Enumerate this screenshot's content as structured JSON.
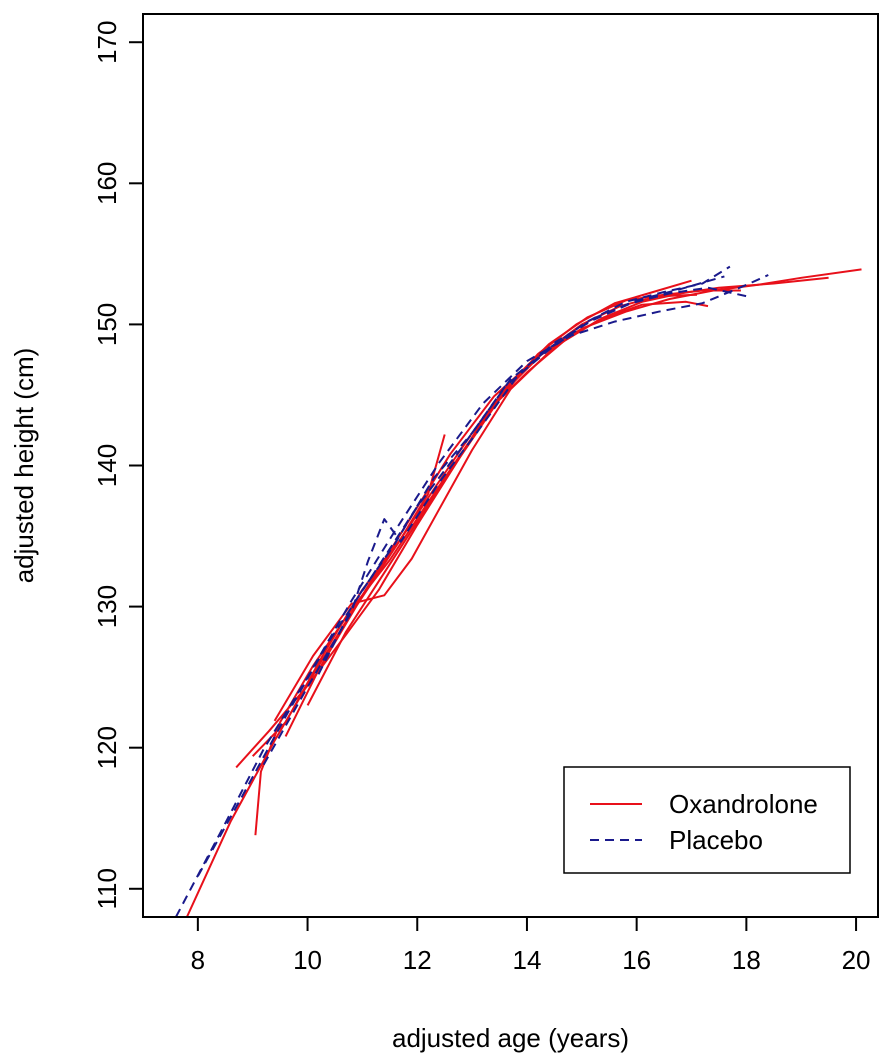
{
  "chart_data": {
    "type": "line",
    "title": "",
    "xlabel": "adjusted age (years)",
    "ylabel": "adjusted height (cm)",
    "xlim": [
      7.0,
      20.4
    ],
    "ylim": [
      108.0,
      172.0
    ],
    "x_ticks": [
      8,
      10,
      12,
      14,
      16,
      18,
      20
    ],
    "y_ticks": [
      110,
      120,
      130,
      140,
      150,
      160,
      170
    ],
    "grid": false,
    "legend": {
      "position": "bottom-right",
      "entries": [
        {
          "label": "Oxandrolone",
          "color": "#e8101a",
          "style": "solid"
        },
        {
          "label": "Placebo",
          "color": "#1a1a8c",
          "style": "dashed"
        }
      ]
    },
    "series": [
      {
        "group": "Oxandrolone",
        "color": "#e8101a",
        "x": [
          7.8,
          8.6,
          9.4,
          10.2,
          11.0,
          11.8,
          12.6,
          13.4,
          14.2,
          15.0,
          15.8,
          16.6,
          17.4,
          18.2,
          19.0,
          20.1
        ],
        "y": [
          108.0,
          114.8,
          120.5,
          125.8,
          130.8,
          135.8,
          140.8,
          144.9,
          147.7,
          149.7,
          150.9,
          151.8,
          152.4,
          152.8,
          153.3,
          153.9
        ]
      },
      {
        "group": "Oxandrolone",
        "color": "#e8101a",
        "x": [
          8.7,
          9.3,
          10.0,
          10.7,
          11.3,
          12.0,
          12.7,
          13.3,
          14.0,
          14.7,
          15.4,
          16.1,
          16.8,
          17.5,
          18.5,
          19.5
        ],
        "y": [
          118.6,
          121.2,
          124.4,
          128.0,
          131.2,
          135.8,
          140.1,
          143.9,
          146.6,
          148.9,
          150.5,
          151.6,
          152.2,
          152.6,
          152.9,
          153.3
        ]
      },
      {
        "group": "Oxandrolone",
        "color": "#e8101a",
        "x": [
          9.05,
          9.15,
          9.5,
          10.1,
          10.8,
          11.5,
          12.2,
          12.9,
          13.6,
          14.3,
          15.0,
          15.7,
          16.4,
          17.1
        ],
        "y": [
          113.8,
          118.3,
          121.8,
          125.8,
          129.8,
          133.3,
          137.4,
          141.4,
          145.3,
          148.0,
          150.0,
          151.3,
          152.0,
          152.1
        ]
      },
      {
        "group": "Oxandrolone",
        "color": "#e8101a",
        "x": [
          9.0,
          9.6,
          10.3,
          11.0,
          11.7,
          12.2,
          12.5
        ],
        "y": [
          119.4,
          121.8,
          126.7,
          131.2,
          134.8,
          138.0,
          142.2
        ]
      },
      {
        "group": "Oxandrolone",
        "color": "#e8101a",
        "x": [
          9.4,
          10.1,
          10.8,
          11.4,
          11.9,
          12.4,
          13.0,
          13.7,
          14.5,
          15.3,
          16.1,
          16.9,
          17.3
        ],
        "y": [
          121.9,
          126.5,
          130.2,
          130.8,
          133.4,
          136.9,
          141.1,
          145.4,
          148.4,
          150.3,
          151.4,
          151.6,
          151.3
        ]
      },
      {
        "group": "Oxandrolone",
        "color": "#e8101a",
        "x": [
          9.6,
          10.2,
          10.9,
          11.6,
          12.3,
          13.0,
          13.7,
          14.4,
          15.1,
          15.8,
          16.5,
          17.2,
          17.9
        ],
        "y": [
          120.8,
          125.5,
          130.1,
          134.2,
          138.3,
          142.3,
          145.9,
          148.6,
          150.5,
          151.7,
          152.1,
          152.4,
          152.4
        ]
      },
      {
        "group": "Oxandrolone",
        "color": "#e8101a",
        "x": [
          10.0,
          10.7,
          11.4,
          12.1,
          12.8,
          13.5,
          14.2,
          14.9,
          15.6,
          16.3,
          17.0
        ],
        "y": [
          123.0,
          128.2,
          132.4,
          136.6,
          140.7,
          144.7,
          147.9,
          150.0,
          151.5,
          152.3,
          153.1
        ]
      },
      {
        "group": "Placebo",
        "color": "#1a1a8c",
        "x": [
          7.6,
          8.4,
          9.2,
          10.0,
          10.8,
          11.6,
          12.4,
          13.2,
          14.0,
          14.8,
          15.6,
          16.4,
          17.2,
          18.0,
          18.4
        ],
        "y": [
          108.0,
          113.9,
          119.9,
          125.0,
          130.4,
          135.4,
          140.2,
          144.4,
          147.4,
          149.2,
          150.2,
          150.9,
          151.5,
          152.8,
          153.5
        ]
      },
      {
        "group": "Placebo",
        "color": "#1a1a8c",
        "x": [
          8.0,
          8.8,
          9.6,
          10.4,
          11.2,
          12.0,
          12.8,
          13.6,
          14.4,
          15.2,
          16.0,
          16.8,
          17.6
        ],
        "y": [
          110.9,
          116.5,
          122.2,
          127.6,
          132.3,
          137.1,
          141.2,
          145.6,
          148.2,
          150.4,
          151.7,
          152.5,
          153.4
        ]
      },
      {
        "group": "Placebo",
        "color": "#1a1a8c",
        "x": [
          9.2,
          10.0,
          10.8,
          11.1,
          11.4,
          11.7,
          12.4,
          13.1,
          13.8,
          14.5,
          15.2,
          15.9,
          16.6,
          17.3,
          18.0
        ],
        "y": [
          118.8,
          124.3,
          129.6,
          133.2,
          136.2,
          134.6,
          138.8,
          142.4,
          146.2,
          148.7,
          150.3,
          151.5,
          152.2,
          152.6,
          152.0
        ]
      },
      {
        "group": "Placebo",
        "color": "#1a1a8c",
        "x": [
          10.2,
          10.9,
          11.6,
          12.3,
          13.0,
          13.7,
          14.4,
          15.1,
          15.8,
          16.5,
          17.2,
          17.7
        ],
        "y": [
          125.2,
          130.6,
          134.5,
          139.1,
          142.3,
          146.1,
          148.3,
          150.2,
          151.6,
          152.3,
          152.9,
          154.1
        ]
      }
    ]
  }
}
